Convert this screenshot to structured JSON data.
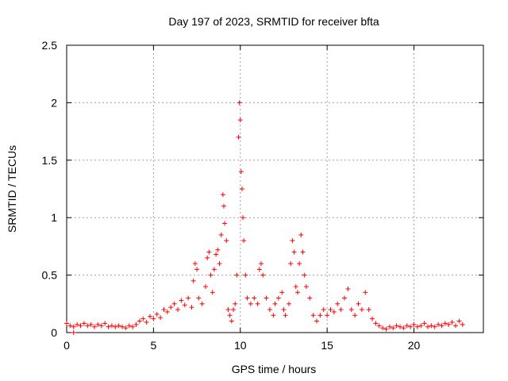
{
  "chart_data": {
    "type": "scatter",
    "title": "Day 197 of 2023, SRMTID for receiver bfta",
    "xlabel": "GPS time / hours",
    "ylabel": "SRMTID / TECUs",
    "xlim": [
      0,
      24
    ],
    "ylim": [
      0,
      2.5
    ],
    "xticks": [
      0,
      5,
      10,
      15,
      20
    ],
    "xtick_labels": [
      "0",
      "5",
      "10",
      "15",
      "20"
    ],
    "yticks": [
      0,
      0.5,
      1,
      1.5,
      2,
      2.5
    ],
    "ytick_labels": [
      "0",
      "0.5",
      "1",
      "1.5",
      "2",
      "2.5"
    ],
    "grid": true,
    "marker": "+",
    "marker_color": "#ff0000",
    "series": [
      {
        "name": "SRMTID",
        "points": [
          [
            0.0,
            0.08
          ],
          [
            0.2,
            0.06
          ],
          [
            0.4,
            0.05
          ],
          [
            0.4,
            0.0
          ],
          [
            0.6,
            0.07
          ],
          [
            0.8,
            0.06
          ],
          [
            1.0,
            0.08
          ],
          [
            1.2,
            0.06
          ],
          [
            1.4,
            0.07
          ],
          [
            1.6,
            0.05
          ],
          [
            1.8,
            0.07
          ],
          [
            2.0,
            0.06
          ],
          [
            2.2,
            0.08
          ],
          [
            2.4,
            0.05
          ],
          [
            2.6,
            0.06
          ],
          [
            2.8,
            0.05
          ],
          [
            3.0,
            0.06
          ],
          [
            3.2,
            0.05
          ],
          [
            3.4,
            0.04
          ],
          [
            3.6,
            0.06
          ],
          [
            3.8,
            0.05
          ],
          [
            4.0,
            0.07
          ],
          [
            4.2,
            0.1
          ],
          [
            4.4,
            0.12
          ],
          [
            4.6,
            0.09
          ],
          [
            4.8,
            0.14
          ],
          [
            5.0,
            0.12
          ],
          [
            5.2,
            0.16
          ],
          [
            5.4,
            0.13
          ],
          [
            5.6,
            0.2
          ],
          [
            5.8,
            0.18
          ],
          [
            6.0,
            0.22
          ],
          [
            6.2,
            0.25
          ],
          [
            6.4,
            0.2
          ],
          [
            6.6,
            0.28
          ],
          [
            6.8,
            0.24
          ],
          [
            7.0,
            0.3
          ],
          [
            7.2,
            0.22
          ],
          [
            7.3,
            0.45
          ],
          [
            7.4,
            0.6
          ],
          [
            7.5,
            0.55
          ],
          [
            7.6,
            0.3
          ],
          [
            7.8,
            0.25
          ],
          [
            8.0,
            0.4
          ],
          [
            8.1,
            0.65
          ],
          [
            8.2,
            0.7
          ],
          [
            8.3,
            0.5
          ],
          [
            8.4,
            0.35
          ],
          [
            8.5,
            0.55
          ],
          [
            8.6,
            0.68
          ],
          [
            8.7,
            0.72
          ],
          [
            8.8,
            0.6
          ],
          [
            8.9,
            0.85
          ],
          [
            9.0,
            1.2
          ],
          [
            9.05,
            1.1
          ],
          [
            9.1,
            0.95
          ],
          [
            9.2,
            0.8
          ],
          [
            9.3,
            0.2
          ],
          [
            9.4,
            0.15
          ],
          [
            9.5,
            0.1
          ],
          [
            9.6,
            0.2
          ],
          [
            9.7,
            0.25
          ],
          [
            9.8,
            0.5
          ],
          [
            9.9,
            1.7
          ],
          [
            9.95,
            2.0
          ],
          [
            10.0,
            1.85
          ],
          [
            10.05,
            1.4
          ],
          [
            10.1,
            1.25
          ],
          [
            10.15,
            1.0
          ],
          [
            10.2,
            0.8
          ],
          [
            10.3,
            0.5
          ],
          [
            10.4,
            0.3
          ],
          [
            10.6,
            0.25
          ],
          [
            10.8,
            0.3
          ],
          [
            11.0,
            0.25
          ],
          [
            11.1,
            0.55
          ],
          [
            11.2,
            0.6
          ],
          [
            11.3,
            0.5
          ],
          [
            11.5,
            0.3
          ],
          [
            11.7,
            0.2
          ],
          [
            11.9,
            0.15
          ],
          [
            12.0,
            0.25
          ],
          [
            12.2,
            0.3
          ],
          [
            12.4,
            0.35
          ],
          [
            12.5,
            0.2
          ],
          [
            12.6,
            0.15
          ],
          [
            12.8,
            0.25
          ],
          [
            12.9,
            0.6
          ],
          [
            13.0,
            0.8
          ],
          [
            13.1,
            0.7
          ],
          [
            13.2,
            0.4
          ],
          [
            13.3,
            0.35
          ],
          [
            13.4,
            0.6
          ],
          [
            13.5,
            0.85
          ],
          [
            13.6,
            0.7
          ],
          [
            13.7,
            0.5
          ],
          [
            13.8,
            0.4
          ],
          [
            14.0,
            0.3
          ],
          [
            14.2,
            0.15
          ],
          [
            14.4,
            0.1
          ],
          [
            14.6,
            0.15
          ],
          [
            14.8,
            0.2
          ],
          [
            15.0,
            0.15
          ],
          [
            15.2,
            0.2
          ],
          [
            15.4,
            0.18
          ],
          [
            15.6,
            0.25
          ],
          [
            15.8,
            0.2
          ],
          [
            16.0,
            0.3
          ],
          [
            16.2,
            0.38
          ],
          [
            16.4,
            0.2
          ],
          [
            16.6,
            0.15
          ],
          [
            16.8,
            0.25
          ],
          [
            17.0,
            0.2
          ],
          [
            17.2,
            0.35
          ],
          [
            17.4,
            0.2
          ],
          [
            17.6,
            0.12
          ],
          [
            17.8,
            0.08
          ],
          [
            18.0,
            0.06
          ],
          [
            18.2,
            0.04
          ],
          [
            18.4,
            0.03
          ],
          [
            18.6,
            0.05
          ],
          [
            18.8,
            0.04
          ],
          [
            19.0,
            0.06
          ],
          [
            19.2,
            0.05
          ],
          [
            19.4,
            0.04
          ],
          [
            19.6,
            0.06
          ],
          [
            19.8,
            0.05
          ],
          [
            20.0,
            0.07
          ],
          [
            20.2,
            0.05
          ],
          [
            20.4,
            0.06
          ],
          [
            20.6,
            0.08
          ],
          [
            20.8,
            0.05
          ],
          [
            21.0,
            0.06
          ],
          [
            21.2,
            0.05
          ],
          [
            21.4,
            0.07
          ],
          [
            21.6,
            0.06
          ],
          [
            21.8,
            0.08
          ],
          [
            22.0,
            0.07
          ],
          [
            22.2,
            0.09
          ],
          [
            22.4,
            0.06
          ],
          [
            22.6,
            0.1
          ],
          [
            22.8,
            0.07
          ]
        ]
      }
    ]
  }
}
